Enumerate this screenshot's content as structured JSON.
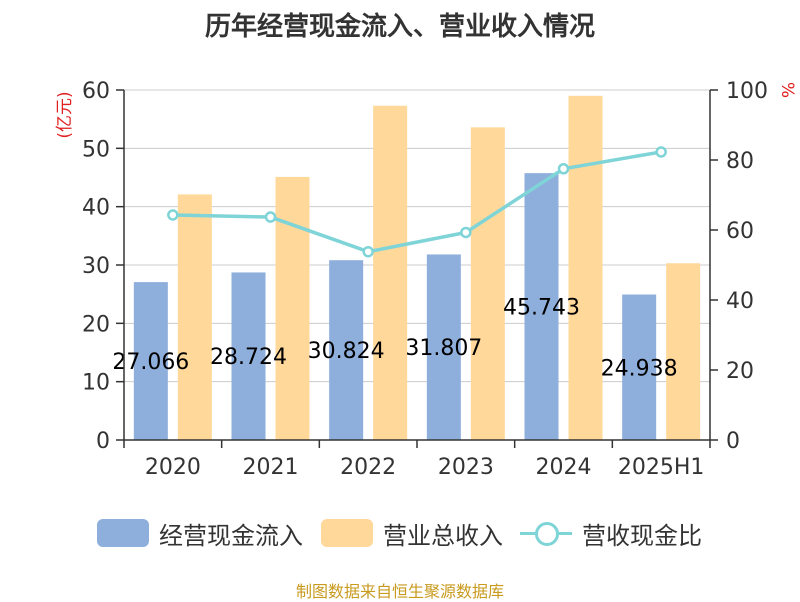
{
  "chart_data": {
    "type": "bar",
    "title": "历年经营现金流入、营业收入情况",
    "categories": [
      "2020",
      "2021",
      "2022",
      "2023",
      "2024",
      "2025H1"
    ],
    "y_left": {
      "unit": "(亿元)",
      "range": [
        0,
        60
      ],
      "ticks": [
        0,
        10,
        20,
        30,
        40,
        50,
        60
      ]
    },
    "y_right": {
      "unit": "%",
      "range": [
        0,
        100
      ],
      "ticks": [
        0,
        20,
        40,
        60,
        80,
        100
      ]
    },
    "series": [
      {
        "name": "经营现金流入",
        "type": "bar",
        "axis": "left",
        "color": "#8eaedb",
        "values": [
          27.066,
          28.724,
          30.824,
          31.807,
          45.743,
          24.938
        ],
        "labels": [
          "27.066",
          "28.724",
          "30.824",
          "31.807",
          "45.743",
          "24.938"
        ]
      },
      {
        "name": "营业总收入",
        "type": "bar",
        "axis": "left",
        "color": "#ffd89a",
        "values": [
          42.1,
          45.1,
          57.3,
          53.6,
          59.0,
          30.3
        ]
      },
      {
        "name": "营收现金比",
        "type": "line",
        "axis": "right",
        "color": "#7fd4d7",
        "values": [
          64.3,
          63.7,
          53.8,
          59.3,
          77.5,
          82.3
        ]
      }
    ],
    "grid": true,
    "legend_position": "bottom"
  },
  "footer": {
    "source": "制图数据来自恒生聚源数据库"
  }
}
